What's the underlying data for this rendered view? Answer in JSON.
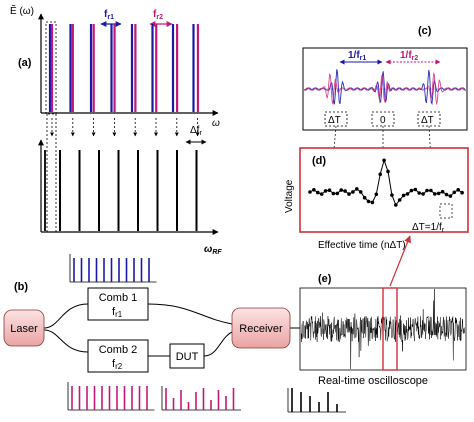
{
  "panels": {
    "a": {
      "label": "(a)",
      "y_axis": "Ẽ (ω)",
      "x_axis": "ω",
      "rf_axis": "ω",
      "rf_sub": "RF",
      "fr1": "f",
      "fr1_sub": "r1",
      "fr2": "f",
      "fr2_sub": "r2",
      "delta_f": "Δf",
      "delta_f_sub": "r"
    },
    "b": {
      "label": "(b)",
      "laser": "Laser",
      "comb1": "Comb 1",
      "comb1_f": "f",
      "comb1_sub": "r1",
      "comb2": "Comb 2",
      "comb2_f": "f",
      "comb2_sub": "r2",
      "dut": "DUT",
      "receiver": "Receiver"
    },
    "c": {
      "label": "(c)",
      "inv_fr1": "1/f",
      "inv_fr1_sub": "r1",
      "inv_fr2": "1/f",
      "inv_fr2_sub": "r2",
      "dt_left": "ΔT",
      "zero": "0",
      "dt_right": "ΔT"
    },
    "d": {
      "label": "(d)",
      "ylabel": "Voltage",
      "xlabel": "Effective time (nΔT)",
      "dt_eq": "ΔT=1/f",
      "dt_eq_sub": "r"
    },
    "e": {
      "label": "(e)",
      "caption": "Real-time oscilloscope"
    }
  },
  "colors": {
    "blue": "#1a1aa8",
    "pink": "#c2187a",
    "red": "#d0303a",
    "box_fill": "#f5c8c8"
  }
}
